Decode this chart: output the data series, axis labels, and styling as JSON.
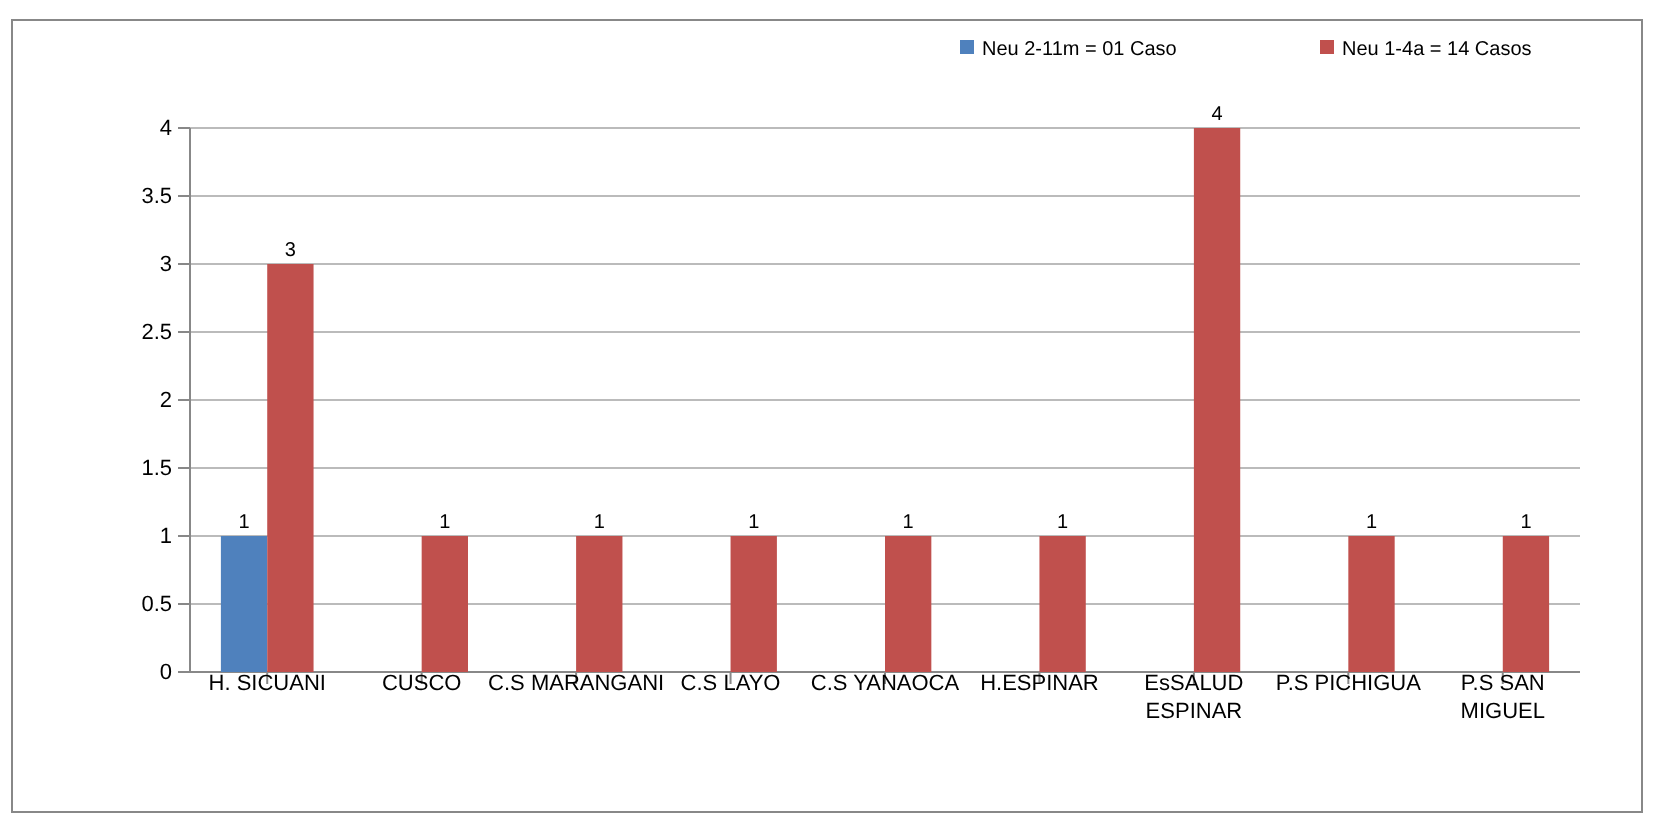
{
  "chart_data": {
    "type": "bar",
    "categories": [
      "H. SICUANI",
      "CUSCO",
      "C.S MARANGANI",
      "C.S LAYO",
      "C.S YANAOCA",
      "H.ESPINAR",
      "EsSALUD ESPINAR",
      "P.S PICHIGUA",
      "P.S SAN MIGUEL"
    ],
    "series": [
      {
        "name": "Neu 2-11m = 01 Caso",
        "color": "#4f81bd",
        "values": [
          1,
          null,
          null,
          null,
          null,
          null,
          null,
          null,
          null
        ]
      },
      {
        "name": "Neu 1-4a = 14 Casos",
        "color": "#c0504d",
        "values": [
          3,
          1,
          1,
          1,
          1,
          1,
          4,
          1,
          1
        ]
      }
    ],
    "ylim": [
      0,
      4
    ],
    "yticks": [
      0,
      0.5,
      1,
      1.5,
      2,
      2.5,
      3,
      3.5,
      4
    ],
    "grid": "y",
    "legend": "top right",
    "data_labels": true
  }
}
